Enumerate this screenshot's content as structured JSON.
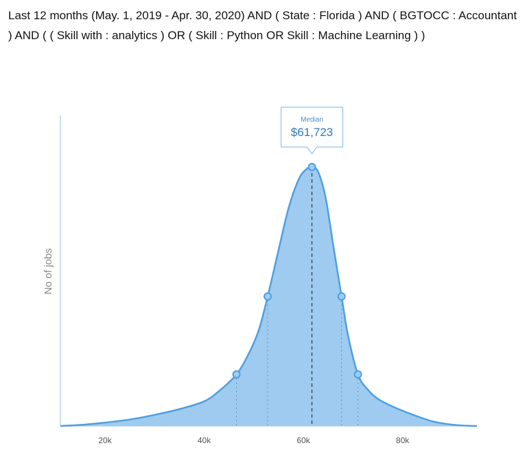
{
  "query": "Last 12 months (May. 1, 2019 - Apr. 30, 2020) AND ( State : Florida ) AND ( BGTOCC : Accountant ) AND ( ( Skill with : analytics ) OR ( Skill : Python OR Skill : Machine Learning ) )",
  "colors": {
    "fill": "#9ecbef",
    "line": "#4e9fe0",
    "axis": "#b7d4ee",
    "marker_fill": "#9fcdf1"
  },
  "chart_data": {
    "type": "area",
    "title": "",
    "xlabel": "",
    "ylabel": "No of jobs",
    "x_ticks": [
      20000,
      40000,
      60000,
      80000
    ],
    "x_tick_labels": [
      "20k",
      "40k",
      "60k",
      "80k"
    ],
    "xlim": [
      11000,
      95000
    ],
    "ylim": [
      0,
      1
    ],
    "curve": {
      "x": [
        11000,
        15000,
        20000,
        25000,
        30000,
        35000,
        40000,
        43000,
        46500,
        49000,
        51000,
        52800,
        55000,
        57000,
        59000,
        60500,
        61723,
        63000,
        64500,
        66000,
        67700,
        69000,
        71000,
        73000,
        75000,
        78000,
        82000,
        86000,
        90000,
        93000,
        95000
      ],
      "y": [
        0.0,
        0.004,
        0.013,
        0.025,
        0.043,
        0.065,
        0.095,
        0.135,
        0.199,
        0.28,
        0.37,
        0.5,
        0.68,
        0.84,
        0.95,
        0.99,
        1.0,
        0.98,
        0.88,
        0.7,
        0.5,
        0.35,
        0.199,
        0.14,
        0.105,
        0.075,
        0.044,
        0.018,
        0.005,
        0.001,
        0.0
      ]
    },
    "markers": [
      {
        "x": 46500,
        "y": 0.199
      },
      {
        "x": 52800,
        "y": 0.5
      },
      {
        "x": 61723,
        "y": 1.0
      },
      {
        "x": 67700,
        "y": 0.5
      },
      {
        "x": 71000,
        "y": 0.199
      }
    ],
    "median": {
      "label": "Median",
      "value": 61723,
      "value_text": "$61,723"
    }
  }
}
